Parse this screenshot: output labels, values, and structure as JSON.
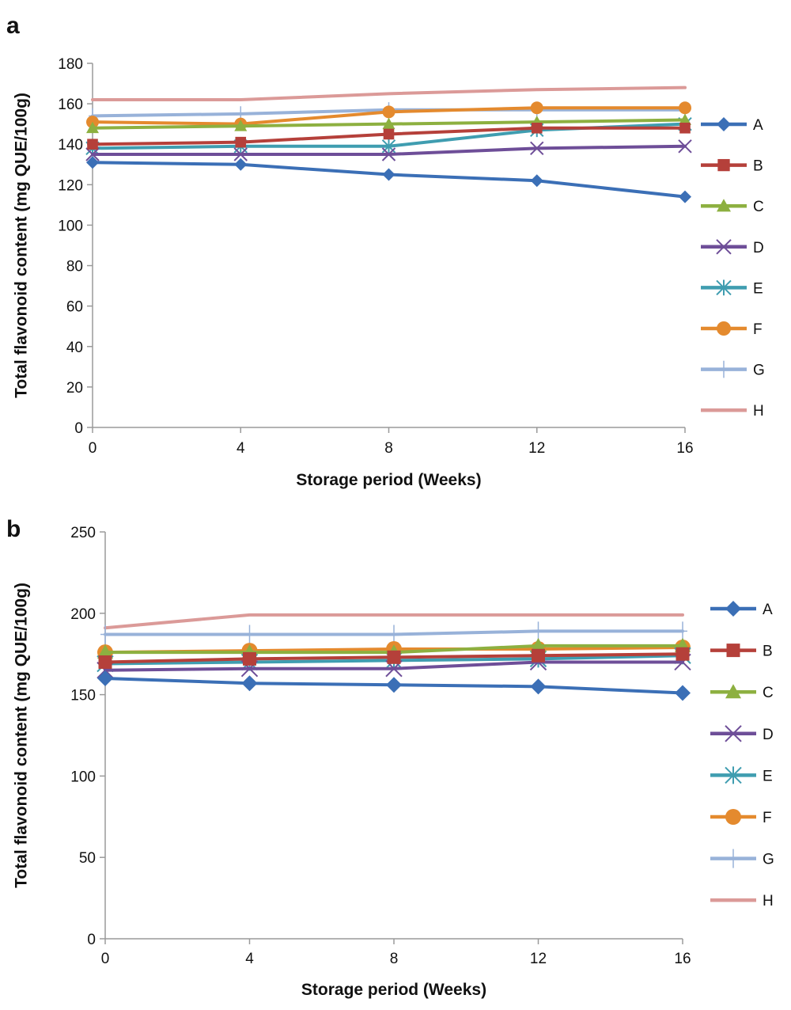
{
  "chart_data": [
    {
      "type": "line",
      "panel_label": "a",
      "xlabel": "Storage period (Weeks)",
      "ylabel": "Total flavonoid content (mg QUE/100g)",
      "x": [
        0,
        4,
        8,
        12,
        16
      ],
      "x_ticks": [
        "0",
        "4",
        "8",
        "12",
        "16"
      ],
      "ylim": [
        0,
        180
      ],
      "y_ticks": [
        "0",
        "20",
        "40",
        "60",
        "80",
        "100",
        "120",
        "140",
        "160",
        "180"
      ],
      "grid": false,
      "legend_position": "right",
      "series": [
        {
          "name": "A",
          "color": "#3b6fb6",
          "marker": "diamond",
          "values": [
            131,
            130,
            125,
            122,
            114
          ]
        },
        {
          "name": "B",
          "color": "#b5403a",
          "marker": "square",
          "values": [
            140,
            141,
            145,
            148,
            148
          ]
        },
        {
          "name": "C",
          "color": "#8db040",
          "marker": "triangle",
          "values": [
            148,
            149,
            150,
            151,
            152
          ]
        },
        {
          "name": "D",
          "color": "#6e4e98",
          "marker": "x",
          "values": [
            135,
            135,
            135,
            138,
            139
          ]
        },
        {
          "name": "E",
          "color": "#3f9db0",
          "marker": "asterisk",
          "values": [
            138,
            139,
            139,
            147,
            150
          ]
        },
        {
          "name": "F",
          "color": "#e48a2e",
          "marker": "circle",
          "values": [
            151,
            150,
            156,
            158,
            158
          ]
        },
        {
          "name": "G",
          "color": "#98b2d9",
          "marker": "plus",
          "values": [
            154,
            155,
            157,
            157,
            157
          ]
        },
        {
          "name": "H",
          "color": "#db9a98",
          "marker": "none",
          "values": [
            162,
            162,
            165,
            167,
            168
          ]
        }
      ]
    },
    {
      "type": "line",
      "panel_label": "b",
      "xlabel": "Storage period (Weeks)",
      "ylabel": "Total flavonoid content (mg QUE/100g)",
      "x": [
        0,
        4,
        8,
        12,
        16
      ],
      "x_ticks": [
        "0",
        "4",
        "8",
        "12",
        "16"
      ],
      "ylim": [
        0,
        250
      ],
      "y_ticks": [
        "0",
        "50",
        "100",
        "150",
        "200",
        "250"
      ],
      "grid": false,
      "legend_position": "right",
      "series": [
        {
          "name": "A",
          "color": "#3b6fb6",
          "marker": "diamond",
          "values": [
            160,
            157,
            156,
            155,
            151
          ]
        },
        {
          "name": "B",
          "color": "#b5403a",
          "marker": "square",
          "values": [
            170,
            172,
            173,
            174,
            175
          ]
        },
        {
          "name": "C",
          "color": "#8db040",
          "marker": "triangle",
          "values": [
            176,
            176,
            176,
            180,
            180
          ]
        },
        {
          "name": "D",
          "color": "#6e4e98",
          "marker": "x",
          "values": [
            165,
            166,
            166,
            170,
            170
          ]
        },
        {
          "name": "E",
          "color": "#3f9db0",
          "marker": "asterisk",
          "values": [
            169,
            170,
            171,
            172,
            174
          ]
        },
        {
          "name": "F",
          "color": "#e48a2e",
          "marker": "circle",
          "values": [
            176,
            177,
            178,
            178,
            179
          ]
        },
        {
          "name": "G",
          "color": "#98b2d9",
          "marker": "plus",
          "values": [
            187,
            187,
            187,
            189,
            189
          ]
        },
        {
          "name": "H",
          "color": "#db9a98",
          "marker": "none",
          "values": [
            191,
            199,
            199,
            199,
            199
          ]
        }
      ]
    }
  ]
}
